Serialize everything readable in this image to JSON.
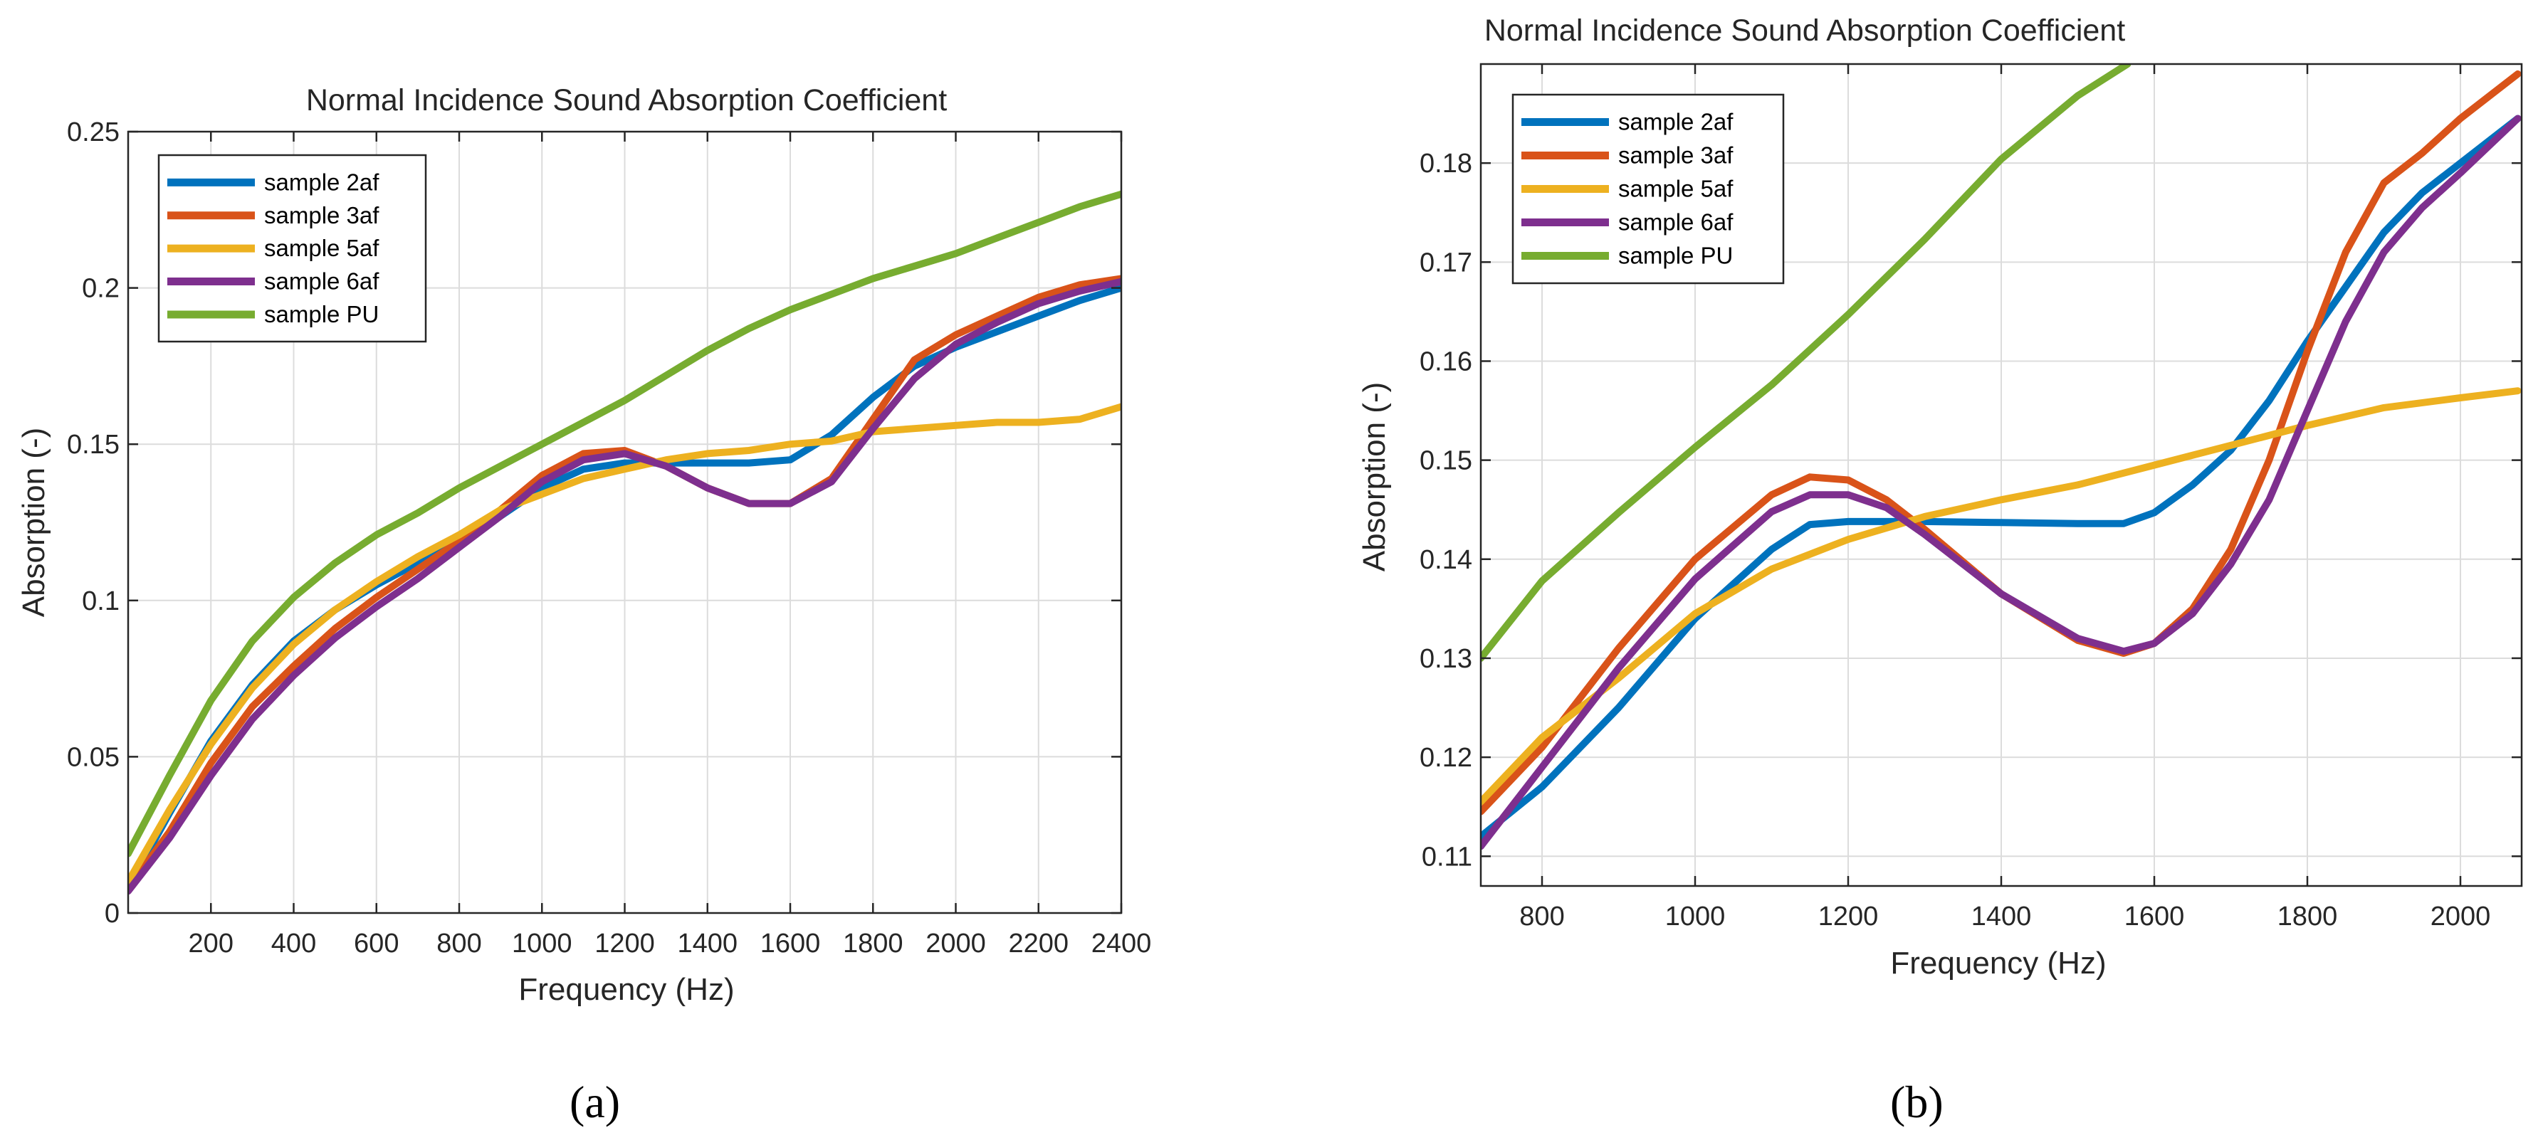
{
  "colors": {
    "sample 2af": "#0072BD",
    "sample 3af": "#D95319",
    "sample 5af": "#EDB120",
    "sample 6af": "#7E2F8E",
    "sample PU": "#77AC30"
  },
  "chart_data": [
    {
      "type": "line",
      "panel": "(a)",
      "title": "Normal Incidence Sound Absorption Coefficient",
      "xlabel": "Frequency (Hz)",
      "ylabel": "Absorption (-)",
      "xlim": [
        0,
        2400
      ],
      "ylim": [
        0,
        0.25
      ],
      "xticks": [
        200,
        400,
        600,
        800,
        1000,
        1200,
        1400,
        1600,
        1800,
        2000,
        2200,
        2400
      ],
      "yticks": [
        0,
        0.05,
        0.1,
        0.15,
        0.2,
        0.25
      ],
      "xtick_labels": [
        "200",
        "400",
        "600",
        "800",
        "1000",
        "1200",
        "1400",
        "1600",
        "1800",
        "2000",
        "2200",
        "2400"
      ],
      "ytick_labels": [
        "0",
        "0.05",
        "0.1",
        "0.15",
        "0.2",
        "0.25"
      ],
      "grid": true,
      "legend_position": "top-left",
      "series": [
        {
          "name": "sample 2af",
          "x": [
            0,
            100,
            200,
            300,
            400,
            500,
            600,
            700,
            800,
            900,
            1000,
            1100,
            1200,
            1300,
            1400,
            1500,
            1600,
            1700,
            1800,
            1900,
            2000,
            2100,
            2200,
            2300,
            2400
          ],
          "y": [
            0.008,
            0.032,
            0.055,
            0.073,
            0.087,
            0.097,
            0.105,
            0.112,
            0.119,
            0.127,
            0.136,
            0.142,
            0.144,
            0.144,
            0.144,
            0.144,
            0.145,
            0.153,
            0.165,
            0.175,
            0.181,
            0.186,
            0.191,
            0.196,
            0.2
          ]
        },
        {
          "name": "sample 3af",
          "x": [
            0,
            100,
            200,
            300,
            400,
            500,
            600,
            700,
            800,
            900,
            1000,
            1100,
            1200,
            1300,
            1400,
            1500,
            1600,
            1700,
            1800,
            1900,
            2000,
            2100,
            2200,
            2300,
            2400
          ],
          "y": [
            0.008,
            0.026,
            0.048,
            0.066,
            0.079,
            0.091,
            0.101,
            0.11,
            0.119,
            0.129,
            0.14,
            0.147,
            0.148,
            0.143,
            0.136,
            0.131,
            0.131,
            0.139,
            0.158,
            0.177,
            0.185,
            0.191,
            0.197,
            0.201,
            0.203
          ]
        },
        {
          "name": "sample 5af",
          "x": [
            0,
            100,
            200,
            300,
            400,
            500,
            600,
            700,
            800,
            900,
            1000,
            1100,
            1200,
            1300,
            1400,
            1500,
            1600,
            1700,
            1800,
            1900,
            2000,
            2100,
            2200,
            2300,
            2400
          ],
          "y": [
            0.01,
            0.033,
            0.054,
            0.072,
            0.086,
            0.097,
            0.106,
            0.114,
            0.121,
            0.129,
            0.134,
            0.139,
            0.142,
            0.145,
            0.147,
            0.148,
            0.15,
            0.151,
            0.154,
            0.155,
            0.156,
            0.157,
            0.157,
            0.158,
            0.162
          ]
        },
        {
          "name": "sample 6af",
          "x": [
            0,
            100,
            200,
            300,
            400,
            500,
            600,
            700,
            800,
            900,
            1000,
            1100,
            1200,
            1300,
            1400,
            1500,
            1600,
            1700,
            1800,
            1900,
            2000,
            2100,
            2200,
            2300,
            2400
          ],
          "y": [
            0.007,
            0.024,
            0.044,
            0.062,
            0.076,
            0.088,
            0.098,
            0.107,
            0.117,
            0.127,
            0.138,
            0.145,
            0.147,
            0.143,
            0.136,
            0.131,
            0.131,
            0.138,
            0.155,
            0.171,
            0.182,
            0.189,
            0.195,
            0.199,
            0.202
          ]
        },
        {
          "name": "sample PU",
          "x": [
            0,
            100,
            200,
            300,
            400,
            500,
            600,
            700,
            800,
            900,
            1000,
            1100,
            1200,
            1300,
            1400,
            1500,
            1600,
            1700,
            1800,
            1900,
            2000,
            2100,
            2200,
            2300,
            2400
          ],
          "y": [
            0.019,
            0.044,
            0.068,
            0.087,
            0.101,
            0.112,
            0.121,
            0.128,
            0.136,
            0.143,
            0.15,
            0.157,
            0.164,
            0.172,
            0.18,
            0.187,
            0.193,
            0.198,
            0.203,
            0.207,
            0.211,
            0.216,
            0.221,
            0.226,
            0.23
          ]
        }
      ]
    },
    {
      "type": "line",
      "panel": "(b)",
      "title": "Normal Incidence Sound Absorption Coefficient",
      "xlabel": "Frequency (Hz)",
      "ylabel": "Absorption (-)",
      "xlim": [
        720,
        2080
      ],
      "ylim": [
        0.107,
        0.19
      ],
      "xticks": [
        800,
        1000,
        1200,
        1400,
        1600,
        1800,
        2000
      ],
      "yticks": [
        0.11,
        0.12,
        0.13,
        0.14,
        0.15,
        0.16,
        0.17,
        0.18
      ],
      "xtick_labels": [
        "800",
        "1000",
        "1200",
        "1400",
        "1600",
        "1800",
        "2000"
      ],
      "ytick_labels": [
        "0.11",
        "0.12",
        "0.13",
        "0.14",
        "0.15",
        "0.16",
        "0.17",
        "0.18"
      ],
      "grid": true,
      "legend_position": "top-left",
      "series": [
        {
          "name": "sample 2af",
          "x": [
            720,
            800,
            900,
            1000,
            1100,
            1150,
            1200,
            1300,
            1400,
            1500,
            1560,
            1600,
            1650,
            1700,
            1750,
            1800,
            1850,
            1900,
            1950,
            2000,
            2075
          ],
          "y": [
            0.112,
            0.117,
            0.125,
            0.134,
            0.141,
            0.1435,
            0.1438,
            0.1438,
            0.1437,
            0.1436,
            0.1436,
            0.1447,
            0.1475,
            0.151,
            0.156,
            0.162,
            0.1675,
            0.173,
            0.177,
            0.18,
            0.1845
          ]
        },
        {
          "name": "sample 3af",
          "x": [
            720,
            800,
            900,
            1000,
            1100,
            1150,
            1200,
            1250,
            1300,
            1400,
            1500,
            1560,
            1600,
            1650,
            1700,
            1750,
            1800,
            1850,
            1900,
            1950,
            2000,
            2075
          ],
          "y": [
            0.1145,
            0.121,
            0.131,
            0.14,
            0.1465,
            0.1483,
            0.148,
            0.146,
            0.143,
            0.1365,
            0.1318,
            0.1305,
            0.1315,
            0.135,
            0.141,
            0.15,
            0.161,
            0.171,
            0.178,
            0.181,
            0.1845,
            0.189
          ]
        },
        {
          "name": "sample 5af",
          "x": [
            720,
            800,
            900,
            1000,
            1100,
            1200,
            1300,
            1400,
            1500,
            1600,
            1700,
            1800,
            1900,
            2000,
            2075
          ],
          "y": [
            0.1155,
            0.122,
            0.128,
            0.1345,
            0.139,
            0.142,
            0.1443,
            0.146,
            0.1475,
            0.1495,
            0.1515,
            0.1535,
            0.1553,
            0.1563,
            0.157
          ]
        },
        {
          "name": "sample 6af",
          "x": [
            720,
            800,
            900,
            1000,
            1100,
            1150,
            1200,
            1250,
            1300,
            1400,
            1500,
            1560,
            1600,
            1650,
            1700,
            1750,
            1800,
            1850,
            1900,
            1950,
            2000,
            2075
          ],
          "y": [
            0.111,
            0.119,
            0.129,
            0.138,
            0.1448,
            0.1465,
            0.1465,
            0.1452,
            0.1425,
            0.1365,
            0.132,
            0.1307,
            0.1315,
            0.1345,
            0.1395,
            0.146,
            0.155,
            0.164,
            0.171,
            0.1755,
            0.179,
            0.1845
          ]
        },
        {
          "name": "sample PU",
          "x": [
            720,
            800,
            900,
            1000,
            1100,
            1200,
            1300,
            1400,
            1500,
            1565
          ],
          "y": [
            0.13,
            0.1378,
            0.1447,
            0.1513,
            0.1576,
            0.1647,
            0.1723,
            0.1804,
            0.1868,
            0.19
          ]
        }
      ]
    }
  ]
}
